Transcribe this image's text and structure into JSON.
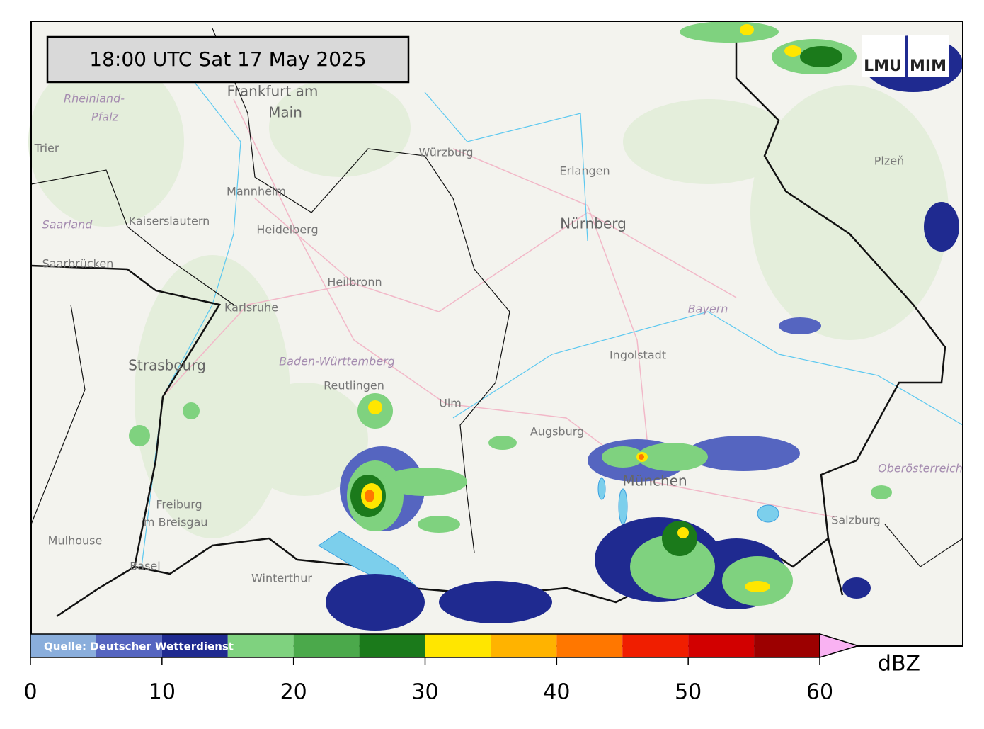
{
  "header": {
    "timestamp": "18:00 UTC  Sat 17 May 2025",
    "logos": [
      "LMU",
      "MIM"
    ]
  },
  "places": [
    "Frankfurt am",
    "Main",
    "Würzburg",
    "Erlangen",
    "Nürnberg",
    "Plzeň",
    "Mannheim",
    "Kaiserslautern",
    "Heidelberg",
    "Saarland",
    "Rheinland-",
    "Pfalz",
    "Trier",
    "Saarbrücken",
    "Heilbronn",
    "Karlsruhe",
    "Bayern",
    "Ingolstadt",
    "Strasbourg",
    "Baden-Württemberg",
    "Reutlingen",
    "Ulm",
    "Augsburg",
    "München",
    "Oberösterreich",
    "Freiburg",
    "im Breisgau",
    "Mulhouse",
    "Basel",
    "Winterthur",
    "Salzburg"
  ],
  "colorbar": {
    "source": "Quelle: Deutscher Wetterdienst",
    "label": "dBZ",
    "bounds": [
      0,
      5,
      10,
      15,
      20,
      25,
      30,
      35,
      40,
      45,
      50,
      55,
      60
    ],
    "colors": [
      "#8aaedc",
      "#5565c0",
      "#1f2a90",
      "#7fd27f",
      "#4ba94b",
      "#1b7a1b",
      "#ffe600",
      "#ffb300",
      "#ff7700",
      "#f01e00",
      "#d20000",
      "#9c0000"
    ],
    "extend_color": "#f9b2f2",
    "lim": [
      0,
      60
    ],
    "ticks": [
      0,
      10,
      20,
      30,
      40,
      50,
      60
    ]
  }
}
